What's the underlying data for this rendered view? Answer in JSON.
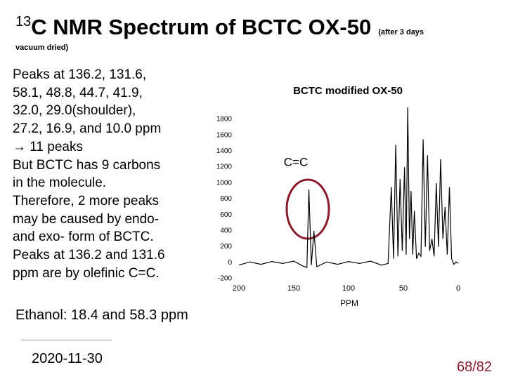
{
  "title": {
    "superscript": "13",
    "text": "C NMR Spectrum of BCTC OX-50",
    "note": "(after 3 days",
    "note_continued": "vacuum dried)"
  },
  "body": [
    "Peaks at 136.2, 131.6,",
    "58.1, 48.8, 44.7, 41.9,",
    "32.0, 29.0(shoulder),",
    "27.2, 16.9, and 10.0 ppm",
    "→ 11 peaks",
    "But BCTC has 9 carbons",
    "in the molecule.",
    "Therefore, 2 more peaks",
    "may be caused by endo-",
    "and exo- form of BCTC.",
    "Peaks at 136.2 and 131.6",
    "ppm are by olefinic C=C."
  ],
  "ethanol": "Ethanol: 18.4 and 58.3 ppm",
  "footer": {
    "date": "2020-11-30",
    "page": "68/82"
  },
  "chart_data": {
    "type": "line",
    "title": "BCTC modified OX-50",
    "xlabel": "PPM",
    "annotation": "C=C",
    "color": "#000000",
    "xlim": [
      200,
      0
    ],
    "xticks": [
      200,
      150,
      100,
      50,
      0
    ],
    "ylim": [
      -200,
      1800
    ],
    "yticks": [
      -200,
      0,
      200,
      400,
      600,
      800,
      1000,
      1200,
      1400,
      1600,
      1800
    ],
    "x": [
      200,
      190,
      180,
      170,
      160,
      150,
      142,
      138,
      136.2,
      134,
      131.6,
      129,
      120,
      110,
      100,
      90,
      80,
      70,
      64,
      61,
      59,
      57,
      55,
      53,
      51,
      49,
      47.5,
      46,
      44.5,
      43,
      41.5,
      40,
      38,
      36,
      34,
      32,
      30,
      28,
      26,
      24,
      22,
      20,
      18,
      16,
      14,
      12,
      10,
      8,
      6,
      4,
      2,
      0
    ],
    "values": [
      -30,
      10,
      -20,
      15,
      -10,
      20,
      -40,
      -60,
      920,
      -30,
      400,
      -50,
      10,
      -20,
      15,
      -10,
      20,
      -30,
      -10,
      950,
      50,
      1480,
      80,
      1050,
      150,
      1200,
      100,
      1950,
      300,
      900,
      100,
      650,
      50,
      120,
      80,
      1550,
      200,
      1350,
      150,
      300,
      80,
      1000,
      200,
      1300,
      300,
      700,
      100,
      950,
      50,
      -20,
      10,
      -10
    ]
  }
}
